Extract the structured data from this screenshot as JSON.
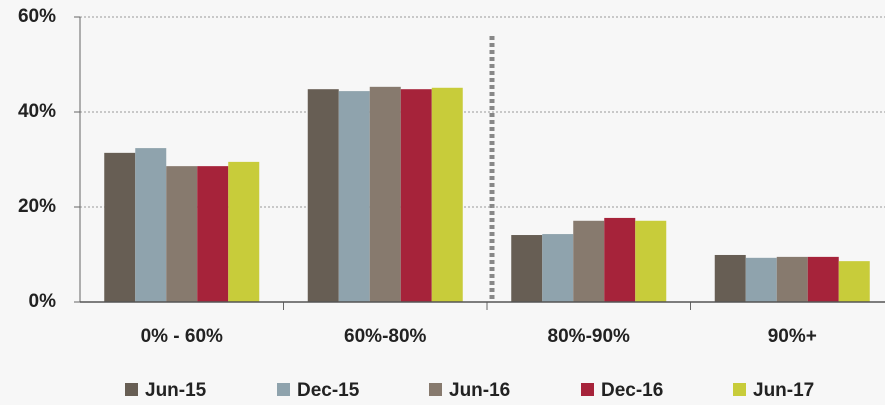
{
  "chart_data": {
    "type": "bar",
    "categories": [
      "0% - 60%",
      "60%-80%",
      "80%-90%",
      "90%+"
    ],
    "series": [
      {
        "name": "Jun-15",
        "color": "#675e54",
        "values": [
          31.4,
          44.8,
          14.1,
          9.9
        ]
      },
      {
        "name": "Dec-15",
        "color": "#8fa3ad",
        "values": [
          32.4,
          44.4,
          14.3,
          9.3
        ]
      },
      {
        "name": "Jun-16",
        "color": "#877a6e",
        "values": [
          28.6,
          45.3,
          17.1,
          9.5
        ]
      },
      {
        "name": "Dec-16",
        "color": "#a6233a",
        "values": [
          28.6,
          44.8,
          17.7,
          9.5
        ]
      },
      {
        "name": "Jun-17",
        "color": "#c8cc3a",
        "values": [
          29.5,
          45.1,
          17.1,
          8.6
        ]
      }
    ],
    "ylim": [
      0,
      60
    ],
    "yticks": [
      {
        "value": 0,
        "label": "0%"
      },
      {
        "value": 20,
        "label": "20%"
      },
      {
        "value": 40,
        "label": "40%"
      },
      {
        "value": 60,
        "label": "60%"
      }
    ],
    "grid": true,
    "legend": "bottom"
  }
}
